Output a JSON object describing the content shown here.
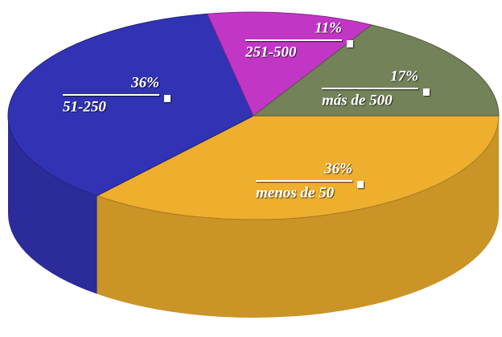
{
  "chart_data": {
    "type": "pie3d",
    "categories": [
      "menos de 50",
      "51-250",
      "251-500",
      "más de 500"
    ],
    "values": [
      36,
      36,
      11,
      17
    ],
    "value_labels": [
      "36%",
      "36%",
      "11%",
      "17%"
    ],
    "colors": [
      "#eeae2e",
      "#3232b4",
      "#c236c6",
      "#74825a"
    ]
  }
}
